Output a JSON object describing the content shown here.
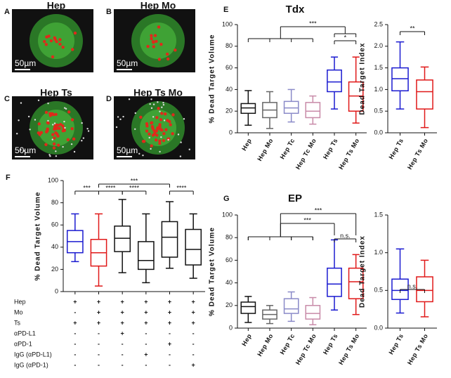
{
  "images": [
    {
      "letter": "A",
      "title": "Hep",
      "scale": "50µm"
    },
    {
      "letter": "B",
      "title": "Hep Mo",
      "scale": "50µm"
    },
    {
      "letter": "C",
      "title": "Hep Ts",
      "scale": "50µm"
    },
    {
      "letter": "D",
      "title": "Hep Ts Mo",
      "scale": "50µm"
    }
  ],
  "chart_data": [
    {
      "type": "box",
      "panel": "E",
      "title": "Tdx",
      "ylabel": "% Dead Target Volume",
      "categories": [
        "Hep",
        "Hep Mo",
        "Hep Tc",
        "Hep Tc Mo",
        "Hep Ts",
        "Hep Ts Mo"
      ],
      "colors": [
        "#111111",
        "#666666",
        "#8a8ac8",
        "#c88aa8",
        "#1a1ad0",
        "#e01818"
      ],
      "boxes": [
        {
          "min": 7,
          "q1": 18,
          "median": 23,
          "q3": 27,
          "max": 39
        },
        {
          "min": 4,
          "q1": 14,
          "median": 21,
          "q3": 28,
          "max": 38
        },
        {
          "min": 10,
          "q1": 18,
          "median": 23,
          "q3": 29,
          "max": 40
        },
        {
          "min": 8,
          "q1": 14,
          "median": 20,
          "q3": 28,
          "max": 34
        },
        {
          "min": 22,
          "q1": 38,
          "median": 47,
          "q3": 58,
          "max": 70
        },
        {
          "min": 9,
          "q1": 20,
          "median": 34,
          "q3": 47,
          "max": 70
        }
      ],
      "ylim": [
        0,
        100
      ],
      "yticks": [
        0,
        20,
        40,
        60,
        80,
        100
      ],
      "annotations": [
        "***",
        "*"
      ]
    },
    {
      "type": "box",
      "ylabel": "Dead Target Index",
      "categories": [
        "Hep Ts",
        "Hep Ts Mo"
      ],
      "colors": [
        "#1a1ad0",
        "#e01818"
      ],
      "boxes": [
        {
          "min": 0.55,
          "q1": 0.97,
          "median": 1.25,
          "q3": 1.5,
          "max": 2.1
        },
        {
          "min": 0.12,
          "q1": 0.55,
          "median": 0.95,
          "q3": 1.22,
          "max": 1.52
        }
      ],
      "ylim": [
        0,
        2.5
      ],
      "yticks": [
        {
          "value": 0,
          "label": "0.0"
        },
        0.5,
        {
          "value": 1,
          "label": "1.0"
        },
        1.5,
        {
          "value": 2,
          "label": "2.0"
        },
        2.5
      ],
      "annotations": [
        "**"
      ]
    },
    {
      "type": "box",
      "panel": "F",
      "ylabel": "% Dead Target Volume",
      "colors": [
        "#1a1ad0",
        "#e01818",
        "#111111",
        "#111111",
        "#111111",
        "#111111"
      ],
      "boxes": [
        {
          "min": 27,
          "q1": 35,
          "median": 45,
          "q3": 55,
          "max": 70
        },
        {
          "min": 5,
          "q1": 23,
          "median": 35,
          "q3": 47,
          "max": 70
        },
        {
          "min": 17,
          "q1": 36,
          "median": 48,
          "q3": 59,
          "max": 83
        },
        {
          "min": 8,
          "q1": 20,
          "median": 28,
          "q3": 45,
          "max": 70
        },
        {
          "min": 21,
          "q1": 31,
          "median": 49,
          "q3": 63,
          "max": 81
        },
        {
          "min": 12,
          "q1": 24,
          "median": 38,
          "q3": 56,
          "max": 70
        }
      ],
      "ylim": [
        0,
        100
      ],
      "yticks": [
        0,
        20,
        40,
        60,
        80,
        100
      ],
      "annotations": [
        "***",
        "****",
        "****",
        "***",
        "****"
      ]
    },
    {
      "type": "box",
      "panel": "G",
      "title": "EP",
      "ylabel": "% Dead Target Volume",
      "categories": [
        "Hep",
        "Hep Mo",
        "Hep Tc",
        "Hep Tc Mo",
        "Hep Ts",
        "Hep Ts Mo"
      ],
      "colors": [
        "#111111",
        "#666666",
        "#8a8ac8",
        "#c88aa8",
        "#1a1ad0",
        "#e01818"
      ],
      "boxes": [
        {
          "min": 5,
          "q1": 13,
          "median": 19,
          "q3": 23,
          "max": 28
        },
        {
          "min": 4,
          "q1": 8,
          "median": 12,
          "q3": 16,
          "max": 20
        },
        {
          "min": 6,
          "q1": 13,
          "median": 17,
          "q3": 26,
          "max": 32
        },
        {
          "min": 3,
          "q1": 8,
          "median": 13,
          "q3": 20,
          "max": 27
        },
        {
          "min": 16,
          "q1": 28,
          "median": 39,
          "q3": 53,
          "max": 78
        },
        {
          "min": 12,
          "q1": 26,
          "median": 41,
          "q3": 53,
          "max": 65
        }
      ],
      "ylim": [
        0,
        100
      ],
      "yticks": [
        0,
        20,
        40,
        60,
        80,
        100
      ],
      "annotations": [
        "***",
        "***",
        "n.s."
      ]
    },
    {
      "type": "box",
      "ylabel": "Dead Target Index",
      "categories": [
        "Hep Ts",
        "Hep Ts Mo"
      ],
      "colors": [
        "#1a1ad0",
        "#e01818"
      ],
      "boxes": [
        {
          "min": 0.2,
          "q1": 0.38,
          "median": 0.5,
          "q3": 0.65,
          "max": 1.05
        },
        {
          "min": 0.15,
          "q1": 0.35,
          "median": 0.5,
          "q3": 0.68,
          "max": 0.9
        }
      ],
      "ylim": [
        0,
        1.5
      ],
      "yticks": [
        {
          "value": 0,
          "label": "0.0"
        },
        0.5,
        {
          "value": 1,
          "label": "1.0"
        },
        1.5
      ],
      "annotations": [
        "n.s."
      ]
    }
  ],
  "table": {
    "rows": [
      {
        "label": "Hep",
        "cells": [
          "+",
          "+",
          "+",
          "+",
          "+",
          "+"
        ]
      },
      {
        "label": "Mo",
        "cells": [
          "-",
          "+",
          "+",
          "+",
          "+",
          "+"
        ]
      },
      {
        "label": "Ts",
        "cells": [
          "+",
          "+",
          "+",
          "+",
          "+",
          "+"
        ]
      },
      {
        "label": "αPD-L1",
        "cells": [
          "-",
          "-",
          "+",
          "-",
          "-",
          "-"
        ]
      },
      {
        "label": "αPD-1",
        "cells": [
          "-",
          "-",
          "-",
          "-",
          "+",
          "-"
        ]
      },
      {
        "label": "IgG (αPD-L1)",
        "cells": [
          "-",
          "-",
          "-",
          "+",
          "-",
          "-"
        ]
      },
      {
        "label": "IgG (αPD-1)",
        "cells": [
          "-",
          "-",
          "-",
          "-",
          "-",
          "+"
        ]
      }
    ]
  }
}
